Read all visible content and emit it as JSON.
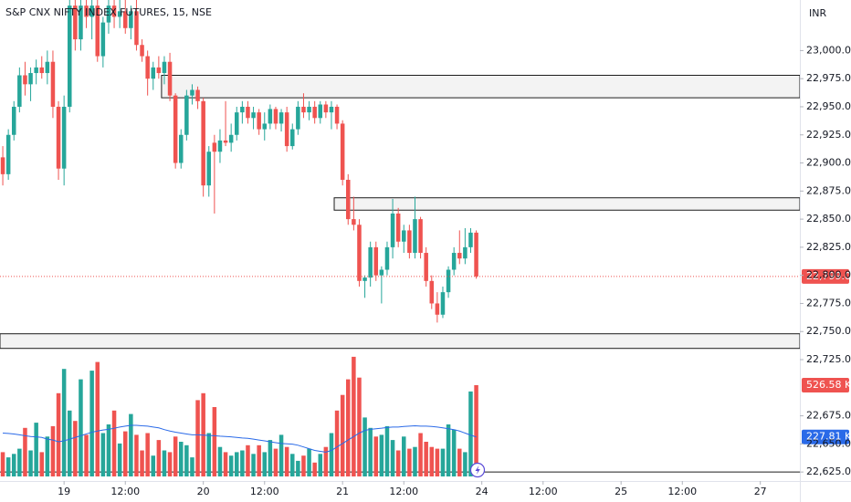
{
  "chart_data": {
    "type": "candlestick",
    "title": "S&P CNX NIFTY INDEX FUTURES, 15, NSE",
    "currency": "INR",
    "up_color": "#26a69a",
    "down_color": "#ef5350",
    "volume_ma_color": "#2a6ae8",
    "grid": false,
    "xlim": [
      -0.5,
      143.1
    ],
    "xticks": [
      {
        "value": 11,
        "label": "19"
      },
      {
        "value": 22,
        "label": "12:00"
      },
      {
        "value": 36,
        "label": "20"
      },
      {
        "value": 47,
        "label": "12:00"
      },
      {
        "value": 61,
        "label": "21"
      },
      {
        "value": 72,
        "label": "12:00"
      },
      {
        "value": 86,
        "label": "24"
      },
      {
        "value": 97,
        "label": "12:00"
      },
      {
        "value": 111,
        "label": "25"
      },
      {
        "value": 122,
        "label": "12:00"
      },
      {
        "value": 136,
        "label": "27"
      }
    ],
    "ylim": [
      22617,
      23045
    ],
    "yticks": [
      {
        "value": 22625,
        "label": "22,625.00"
      },
      {
        "value": 22650,
        "label": "22,650.00"
      },
      {
        "value": 22675,
        "label": "22,675.00"
      },
      {
        "value": 22725,
        "label": "22,725.00"
      },
      {
        "value": 22750,
        "label": "22,750.00"
      },
      {
        "value": 22775,
        "label": "22,775.00"
      },
      {
        "value": 22800,
        "label": "22,800.00"
      },
      {
        "value": 22825,
        "label": "22,825.00"
      },
      {
        "value": 22850,
        "label": "22,850.00"
      },
      {
        "value": 22875,
        "label": "22,875.00"
      },
      {
        "value": 22900,
        "label": "22,900.00"
      },
      {
        "value": 22925,
        "label": "22,925.00"
      },
      {
        "value": 22950,
        "label": "22,950.00"
      },
      {
        "value": 22975,
        "label": "22,975.00"
      },
      {
        "value": 23000,
        "label": "23,000.00"
      }
    ],
    "volume_ylim": [
      0,
      1300
    ],
    "open": [
      22905,
      22890,
      22925,
      22950,
      22978,
      22970,
      22980,
      22985,
      22980,
      22990,
      22950,
      22895,
      22950,
      23040,
      23010,
      23040,
      23030,
      23040,
      22995,
      23025,
      23040,
      23030,
      23035,
      23020,
      23035,
      23005,
      22995,
      22975,
      22985,
      22980,
      22990,
      22960,
      22900,
      22925,
      22960,
      22965,
      22955,
      22880,
      22918,
      22910,
      22920,
      22918,
      22925,
      22945,
      22950,
      22940,
      22945,
      22930,
      22935,
      22948,
      22935,
      22945,
      22915,
      22930,
      22950,
      22945,
      22950,
      22940,
      22952,
      22945,
      22950,
      22935,
      22885,
      22850,
      22845,
      22795,
      22798,
      22825,
      22800,
      22805,
      22825,
      22855,
      22830,
      22840,
      22820,
      22850,
      22820,
      22795,
      22775,
      22765,
      22785,
      22805,
      22820,
      22815,
      22825,
      22838
    ],
    "high": [
      22915,
      22930,
      22955,
      22985,
      22990,
      22985,
      22992,
      22995,
      23000,
      23000,
      22955,
      22960,
      23045,
      23045,
      23045,
      23045,
      23045,
      23045,
      23030,
      23045,
      23045,
      23045,
      23045,
      23040,
      23045,
      23010,
      23000,
      22990,
      22995,
      22995,
      22998,
      22962,
      22930,
      22965,
      22970,
      22968,
      22958,
      22915,
      22925,
      22930,
      22955,
      22935,
      22950,
      22955,
      22955,
      22950,
      22948,
      22945,
      22952,
      22950,
      22948,
      22950,
      22935,
      22955,
      22962,
      22955,
      22955,
      22955,
      22955,
      22955,
      22952,
      22938,
      22890,
      22870,
      22850,
      22800,
      22830,
      22830,
      22808,
      22830,
      22868,
      22860,
      22845,
      22845,
      22870,
      22852,
      22825,
      22800,
      22785,
      22790,
      22808,
      22825,
      22840,
      22842,
      22842,
      22840
    ],
    "low": [
      22880,
      22885,
      22920,
      22945,
      22960,
      22955,
      22970,
      22975,
      22970,
      22940,
      22885,
      22880,
      22945,
      23000,
      23000,
      23020,
      23010,
      22990,
      22985,
      23015,
      23020,
      23020,
      23015,
      23010,
      23000,
      22990,
      22960,
      22965,
      22975,
      22970,
      22955,
      22895,
      22895,
      22920,
      22952,
      22948,
      22870,
      22870,
      22855,
      22900,
      22915,
      22910,
      22920,
      22935,
      22935,
      22930,
      22925,
      22920,
      22930,
      22930,
      22928,
      22910,
      22912,
      22925,
      22940,
      22938,
      22935,
      22935,
      22940,
      22930,
      22930,
      22880,
      22845,
      22840,
      22790,
      22780,
      22790,
      22795,
      22775,
      22800,
      22815,
      22825,
      22820,
      22815,
      22815,
      22815,
      22790,
      22770,
      22758,
      22762,
      22780,
      22800,
      22810,
      22810,
      22820,
      22797
    ],
    "close": [
      22890,
      22925,
      22950,
      22978,
      22970,
      22980,
      22985,
      22980,
      22990,
      22950,
      22895,
      22950,
      23040,
      23010,
      23040,
      23030,
      23040,
      22995,
      23025,
      23040,
      23030,
      23035,
      23020,
      23035,
      23005,
      22995,
      22975,
      22985,
      22980,
      22990,
      22960,
      22900,
      22925,
      22960,
      22965,
      22955,
      22880,
      22910,
      22910,
      22920,
      22918,
      22925,
      22945,
      22950,
      22940,
      22945,
      22930,
      22935,
      22948,
      22935,
      22945,
      22915,
      22930,
      22950,
      22945,
      22950,
      22940,
      22952,
      22945,
      22950,
      22935,
      22885,
      22850,
      22845,
      22795,
      22798,
      22825,
      22800,
      22805,
      22825,
      22855,
      22830,
      22840,
      22820,
      22850,
      22820,
      22795,
      22775,
      22765,
      22785,
      22805,
      22820,
      22815,
      22825,
      22838,
      22799
    ],
    "volume": [
      140,
      110,
      130,
      160,
      280,
      150,
      310,
      140,
      230,
      290,
      480,
      620,
      380,
      320,
      560,
      240,
      610,
      660,
      250,
      300,
      380,
      190,
      260,
      360,
      240,
      150,
      250,
      120,
      210,
      150,
      140,
      230,
      200,
      180,
      110,
      440,
      480,
      250,
      400,
      170,
      140,
      120,
      140,
      150,
      180,
      130,
      180,
      140,
      210,
      160,
      240,
      170,
      130,
      90,
      120,
      160,
      80,
      130,
      170,
      250,
      380,
      470,
      560,
      690,
      570,
      340,
      280,
      230,
      240,
      290,
      210,
      150,
      230,
      160,
      170,
      250,
      200,
      170,
      160,
      160,
      300,
      270,
      160,
      140,
      490,
      526.58
    ],
    "volume_ma": [
      250,
      248,
      245,
      240,
      235,
      230,
      228,
      225,
      215,
      210,
      200,
      205,
      215,
      225,
      235,
      245,
      255,
      262,
      268,
      272,
      278,
      285,
      290,
      295,
      295,
      292,
      290,
      285,
      280,
      270,
      262,
      255,
      250,
      245,
      240,
      240,
      238,
      236,
      235,
      232,
      230,
      228,
      225,
      222,
      220,
      215,
      210,
      205,
      200,
      195,
      190,
      188,
      186,
      180,
      170,
      160,
      150,
      145,
      140,
      150,
      170,
      190,
      210,
      230,
      250,
      265,
      272,
      275,
      278,
      282,
      285,
      285,
      288,
      290,
      292,
      290,
      290,
      288,
      285,
      280,
      275,
      270,
      262,
      250,
      238,
      227.81
    ],
    "zones": [
      {
        "start": 29,
        "high": 22978,
        "low": 22958
      },
      {
        "start": 60,
        "high": 22869,
        "low": 22858
      },
      {
        "start": 0,
        "high": 22748,
        "low": 22735
      }
    ],
    "hlines": [
      22625
    ],
    "last_price": {
      "value": 22799,
      "label": "22,799.00"
    },
    "last_volume": {
      "value": 526.58,
      "label": "526.58 K"
    },
    "last_volume_ma": {
      "value": 227.81,
      "label": "227.81 K"
    }
  }
}
